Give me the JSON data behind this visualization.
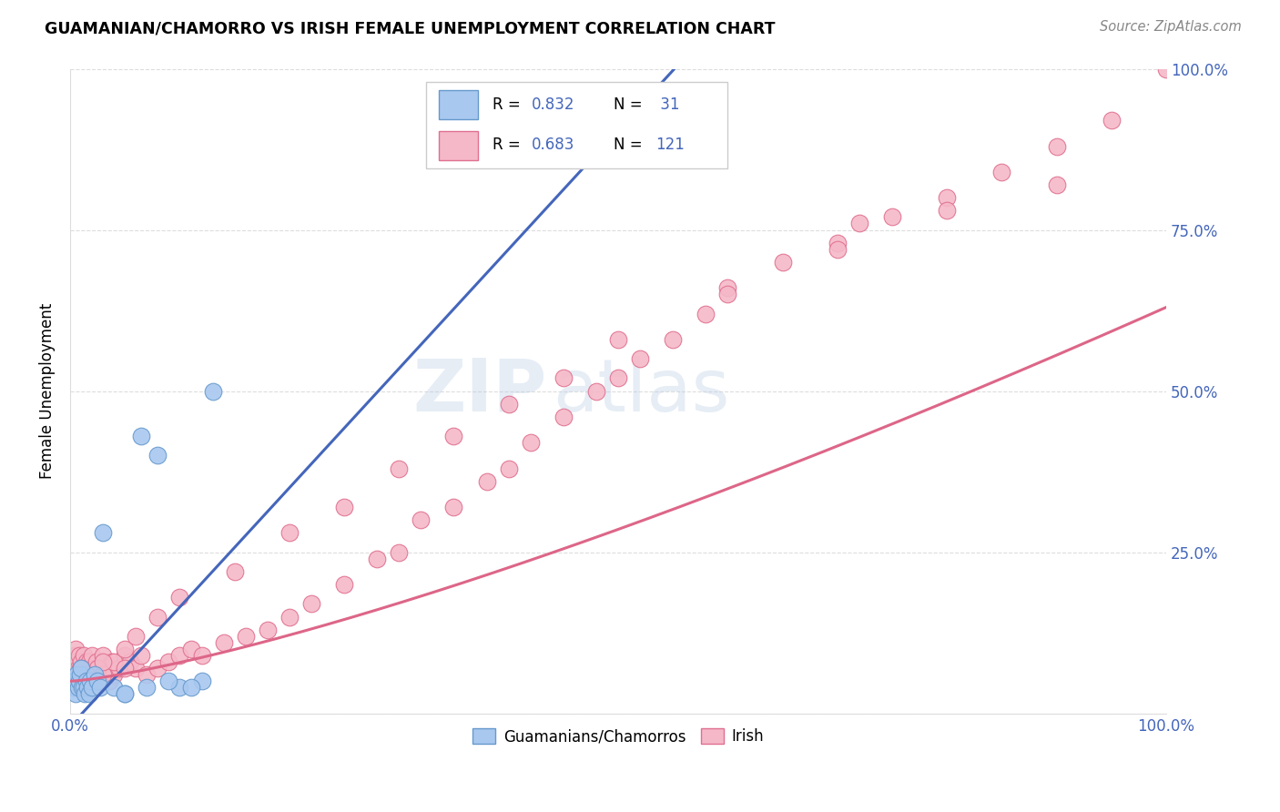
{
  "title": "GUAMANIAN/CHAMORRO VS IRISH FEMALE UNEMPLOYMENT CORRELATION CHART",
  "source": "Source: ZipAtlas.com",
  "ylabel": "Female Unemployment",
  "xlim": [
    0,
    1
  ],
  "ylim": [
    0,
    1
  ],
  "watermark_zip": "ZIP",
  "watermark_atlas": "atlas",
  "legend_r1": "R = 0.832",
  "legend_n1": "N =  31",
  "legend_r2": "R = 0.683",
  "legend_n2": "N = 121",
  "blue_fill": "#A8C8F0",
  "blue_edge": "#6699CC",
  "pink_fill": "#F5B8C8",
  "pink_edge": "#E07090",
  "blue_line": "#4466BB",
  "pink_line": "#DD6688",
  "legend_text_color": "#4466BB",
  "right_tick_color": "#4466BB",
  "bottom_tick_color": "#4466BB",
  "grid_color": "#DDDDDD",
  "guam_x": [
    0.003,
    0.004,
    0.005,
    0.006,
    0.007,
    0.008,
    0.009,
    0.01,
    0.011,
    0.012,
    0.013,
    0.015,
    0.016,
    0.017,
    0.018,
    0.02,
    0.022,
    0.025,
    0.027,
    0.03,
    0.04,
    0.05,
    0.065,
    0.08,
    0.1,
    0.12,
    0.05,
    0.07,
    0.09,
    0.11,
    0.13
  ],
  "guam_y": [
    0.04,
    0.05,
    0.03,
    0.06,
    0.04,
    0.05,
    0.06,
    0.07,
    0.04,
    0.04,
    0.03,
    0.05,
    0.04,
    0.03,
    0.05,
    0.04,
    0.06,
    0.05,
    0.04,
    0.28,
    0.04,
    0.03,
    0.43,
    0.4,
    0.04,
    0.05,
    0.03,
    0.04,
    0.05,
    0.04,
    0.5
  ],
  "irish_x": [
    0.002,
    0.003,
    0.003,
    0.004,
    0.004,
    0.005,
    0.005,
    0.006,
    0.006,
    0.007,
    0.007,
    0.008,
    0.008,
    0.009,
    0.009,
    0.01,
    0.01,
    0.011,
    0.012,
    0.012,
    0.013,
    0.014,
    0.015,
    0.015,
    0.016,
    0.017,
    0.018,
    0.019,
    0.02,
    0.021,
    0.022,
    0.023,
    0.024,
    0.025,
    0.026,
    0.028,
    0.03,
    0.032,
    0.034,
    0.036,
    0.038,
    0.04,
    0.045,
    0.05,
    0.055,
    0.06,
    0.065,
    0.07,
    0.08,
    0.09,
    0.1,
    0.11,
    0.12,
    0.14,
    0.16,
    0.18,
    0.2,
    0.22,
    0.25,
    0.28,
    0.3,
    0.32,
    0.35,
    0.38,
    0.4,
    0.42,
    0.45,
    0.48,
    0.5,
    0.52,
    0.55,
    0.58,
    0.6,
    0.65,
    0.7,
    0.72,
    0.75,
    0.8,
    0.85,
    0.9,
    0.95,
    1.0,
    0.003,
    0.004,
    0.005,
    0.006,
    0.007,
    0.008,
    0.009,
    0.01,
    0.012,
    0.015,
    0.018,
    0.02,
    0.025,
    0.03,
    0.04,
    0.05,
    0.06,
    0.08,
    0.1,
    0.15,
    0.2,
    0.25,
    0.3,
    0.35,
    0.4,
    0.45,
    0.5,
    0.6,
    0.7,
    0.8,
    0.9,
    0.003,
    0.005,
    0.007,
    0.01,
    0.015,
    0.02,
    0.03,
    0.05
  ],
  "irish_y": [
    0.06,
    0.08,
    0.05,
    0.07,
    0.09,
    0.06,
    0.1,
    0.05,
    0.08,
    0.07,
    0.05,
    0.09,
    0.06,
    0.07,
    0.05,
    0.08,
    0.06,
    0.07,
    0.05,
    0.09,
    0.06,
    0.07,
    0.08,
    0.05,
    0.06,
    0.08,
    0.07,
    0.05,
    0.09,
    0.06,
    0.07,
    0.05,
    0.08,
    0.06,
    0.07,
    0.05,
    0.09,
    0.06,
    0.07,
    0.05,
    0.08,
    0.06,
    0.07,
    0.09,
    0.08,
    0.07,
    0.09,
    0.06,
    0.07,
    0.08,
    0.09,
    0.1,
    0.09,
    0.11,
    0.12,
    0.13,
    0.15,
    0.17,
    0.2,
    0.24,
    0.25,
    0.3,
    0.32,
    0.36,
    0.38,
    0.42,
    0.46,
    0.5,
    0.52,
    0.55,
    0.58,
    0.62,
    0.66,
    0.7,
    0.73,
    0.76,
    0.77,
    0.8,
    0.84,
    0.88,
    0.92,
    1.0,
    0.05,
    0.04,
    0.05,
    0.06,
    0.04,
    0.05,
    0.04,
    0.06,
    0.05,
    0.04,
    0.06,
    0.05,
    0.07,
    0.06,
    0.08,
    0.1,
    0.12,
    0.15,
    0.18,
    0.22,
    0.28,
    0.32,
    0.38,
    0.43,
    0.48,
    0.52,
    0.58,
    0.65,
    0.72,
    0.78,
    0.82,
    0.06,
    0.05,
    0.04,
    0.07,
    0.06,
    0.05,
    0.08,
    0.07
  ]
}
